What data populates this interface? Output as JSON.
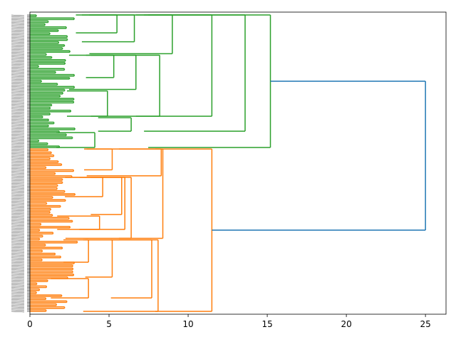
{
  "chart_data": {
    "type": "dendrogram",
    "orientation": "horizontal",
    "title": "",
    "xlabel": "",
    "ylabel": "",
    "xlim": [
      0,
      26.3
    ],
    "x_ticks": [
      0,
      5,
      10,
      15,
      20,
      25
    ],
    "x_tick_labels": [
      "0",
      "5",
      "10",
      "15",
      "20",
      "25"
    ],
    "grid": false,
    "leaf_count": 200,
    "leaf_labels_note": "",
    "colors": {
      "cluster_1": "#2ca02c",
      "cluster_2": "#ff7f0e",
      "above_threshold": "#1f77b4",
      "axis": "#000000"
    },
    "clusters": [
      {
        "color_key": "cluster_1",
        "leaf_range": [
          0,
          89
        ],
        "merges": [
          {
            "leaves": [
              0,
              12
            ],
            "height": 5.5
          },
          {
            "leaves": [
              0,
              18
            ],
            "height": 6.6
          },
          {
            "leaves": [
              0,
              26
            ],
            "height": 9.0
          },
          {
            "leaves": [
              27,
              42
            ],
            "height": 5.3
          },
          {
            "leaves": [
              27,
              50
            ],
            "height": 6.7
          },
          {
            "leaves": [
              51,
              68
            ],
            "height": 4.9
          },
          {
            "leaves": [
              27,
              68
            ],
            "height": 8.2
          },
          {
            "leaves": [
              0,
              68
            ],
            "height": 11.5
          },
          {
            "leaves": [
              69,
              78
            ],
            "height": 6.4
          },
          {
            "leaves": [
              0,
              78
            ],
            "height": 13.6
          },
          {
            "leaves": [
              79,
              89
            ],
            "height": 4.1
          },
          {
            "leaves": [
              0,
              89
            ],
            "height": 15.2
          }
        ]
      },
      {
        "color_key": "cluster_2",
        "leaf_range": [
          90,
          199
        ],
        "merges": [
          {
            "leaves": [
              90,
              104
            ],
            "height": 5.2
          },
          {
            "leaves": [
              90,
              108
            ],
            "height": 8.3
          },
          {
            "leaves": [
              109,
              122
            ],
            "height": 4.6
          },
          {
            "leaves": [
              109,
              134
            ],
            "height": 5.8
          },
          {
            "leaves": [
              135,
              144
            ],
            "height": 4.4
          },
          {
            "leaves": [
              109,
              144
            ],
            "height": 6.0
          },
          {
            "leaves": [
              109,
              150
            ],
            "height": 6.4
          },
          {
            "leaves": [
              90,
              150
            ],
            "height": 8.4
          },
          {
            "leaves": [
              151,
              166
            ],
            "height": 3.7
          },
          {
            "leaves": [
              151,
              176
            ],
            "height": 5.2
          },
          {
            "leaves": [
              177,
              190
            ],
            "height": 3.7
          },
          {
            "leaves": [
              151,
              190
            ],
            "height": 7.7
          },
          {
            "leaves": [
              151,
              199
            ],
            "height": 8.1
          },
          {
            "leaves": [
              90,
              199
            ],
            "height": 11.5
          }
        ]
      }
    ],
    "root_merge": {
      "height": 25.0
    }
  }
}
